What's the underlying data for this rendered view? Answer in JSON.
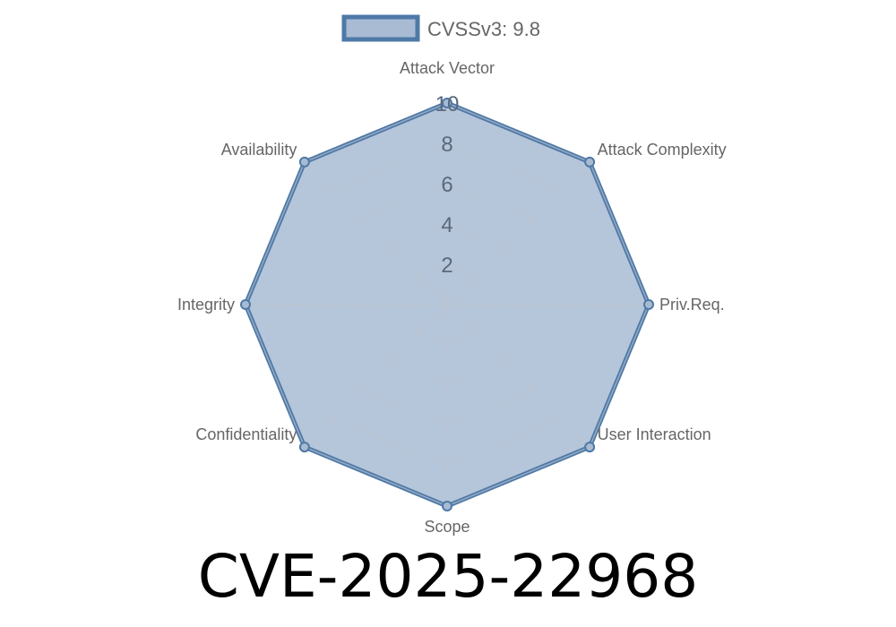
{
  "chart_data": {
    "type": "radar",
    "title": "",
    "categories": [
      "Attack Vector",
      "Attack Complexity",
      "Priv.Req.",
      "User Interaction",
      "Scope",
      "Confidentiality",
      "Integrity",
      "Availability"
    ],
    "series": [
      {
        "name": "CVSSv3: 9.8",
        "values": [
          10,
          10,
          10,
          10,
          10,
          10,
          10,
          10
        ]
      }
    ],
    "rlim": [
      0,
      10
    ],
    "ticks": [
      "2",
      "4",
      "6",
      "8",
      "10"
    ],
    "tick_values": [
      2,
      4,
      6,
      8,
      10
    ],
    "grid": true,
    "legend": "top",
    "colors": {
      "line": "#4e79a7",
      "fill": "#a8bbd3",
      "grid": "#c5ccd5",
      "label": "#666666"
    }
  },
  "caption": "CVE-2025-22968"
}
